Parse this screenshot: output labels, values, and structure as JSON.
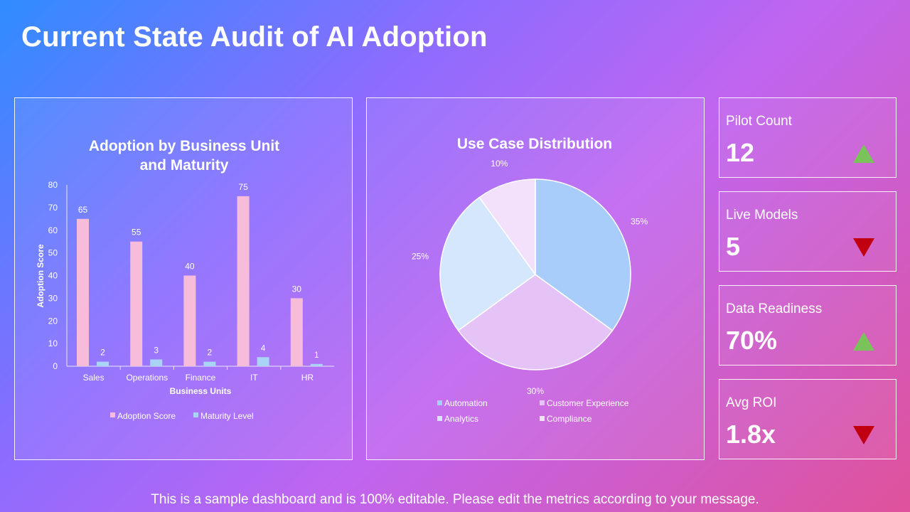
{
  "page_title": "Current State Audit of AI Adoption",
  "footer": "This is a sample dashboard and is 100% editable. Please edit the metrics according to your message.",
  "kpis": [
    {
      "label": "Pilot Count",
      "value": "12",
      "trend": "up"
    },
    {
      "label": "Live Models",
      "value": "5",
      "trend": "down"
    },
    {
      "label": "Data Readiness",
      "value": "70%",
      "trend": "up"
    },
    {
      "label": "Avg ROI",
      "value": "1.8x",
      "trend": "down"
    }
  ],
  "colors": {
    "adoption": "#f7bcd9",
    "maturity": "#a9d4f5",
    "up": "#7ac25a",
    "down": "#c00010"
  },
  "chart_data": [
    {
      "type": "bar",
      "title_lines": [
        "Adoption by Business Unit",
        "and Maturity"
      ],
      "categories": [
        "Sales",
        "Operations",
        "Finance",
        "IT",
        "HR"
      ],
      "series": [
        {
          "name": "Adoption Score",
          "values": [
            65,
            55,
            40,
            75,
            30
          ],
          "color": "#f7bcd9"
        },
        {
          "name": "Maturity Level",
          "values": [
            2,
            3,
            2,
            4,
            1
          ],
          "color": "#a9d4f5"
        }
      ],
      "xlabel": "Business  Units",
      "ylabel": "Adoption Score",
      "ylim": [
        0,
        80
      ],
      "yticks": [
        0,
        10,
        20,
        30,
        40,
        50,
        60,
        70,
        80
      ],
      "legend": "bottom",
      "grid": false
    },
    {
      "type": "pie",
      "title": "Use Case Distribution",
      "slices": [
        {
          "name": "Automation",
          "value": 35,
          "label": "35%",
          "color": "#a9cdfb"
        },
        {
          "name": "Customer Experience",
          "value": 30,
          "label": "30%",
          "color": "#e6c3f7"
        },
        {
          "name": "Analytics",
          "value": 25,
          "label": "25%",
          "color": "#d4e7fd"
        },
        {
          "name": "Compliance",
          "value": 10,
          "label": "10%",
          "color": "#f3e0fb"
        }
      ],
      "legend": "bottom"
    }
  ]
}
